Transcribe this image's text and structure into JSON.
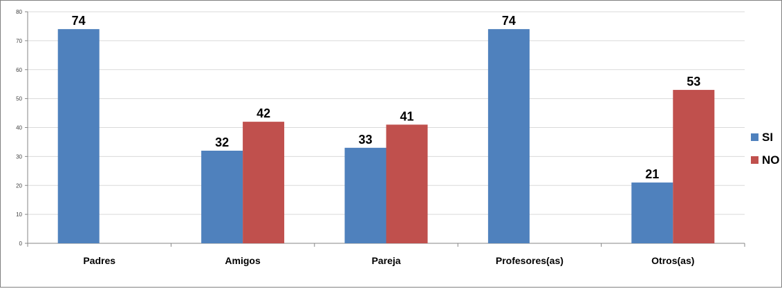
{
  "chart_data": {
    "type": "bar",
    "categories": [
      "Padres",
      "Amigos",
      "Pareja",
      "Profesores(as)",
      "Otros(as)"
    ],
    "series": [
      {
        "name": "SI",
        "values": [
          74,
          32,
          33,
          74,
          21
        ],
        "color": "#4F81BD"
      },
      {
        "name": "NO",
        "values": [
          null,
          42,
          41,
          null,
          53
        ],
        "color": "#C0504D"
      }
    ],
    "ylim": [
      0,
      80
    ],
    "yticks": [
      "0",
      "10",
      "20",
      "30",
      "40",
      "50",
      "60",
      "70",
      "80"
    ],
    "grid": true,
    "legend": "right",
    "data_labels": true,
    "title": "",
    "xlabel": "",
    "ylabel": ""
  }
}
